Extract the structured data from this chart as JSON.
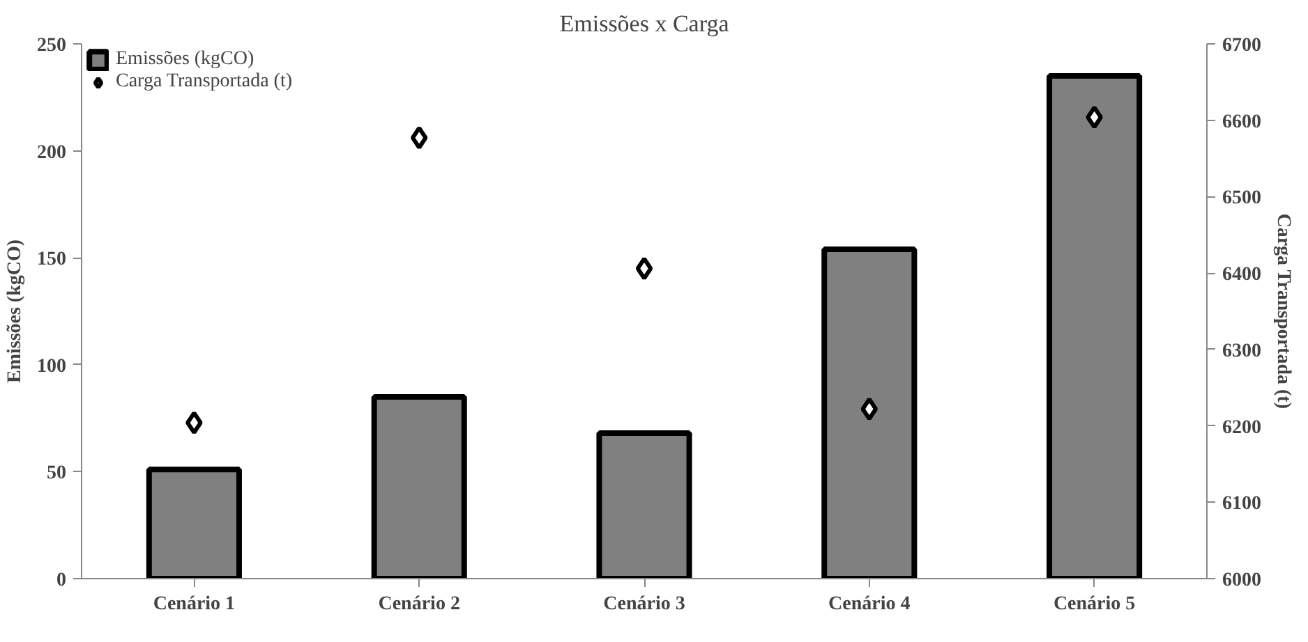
{
  "chart_data": {
    "type": "bar",
    "title": "Emissões x Carga",
    "ylabel": "Emissões (kgCO)",
    "y2label": "Carga Transportada (t)",
    "categories": [
      "Cenário 1",
      "Cenário 2",
      "Cenário 3",
      "Cenário 4",
      "Cenário 5"
    ],
    "series": [
      {
        "name": "Emissões (kgCO)",
        "type": "bar",
        "color": "#808080",
        "values": [
          51,
          85,
          68,
          154,
          235
        ]
      },
      {
        "name": "Carga Transportada (t)",
        "type": "scatter",
        "axis": "y2",
        "color": "#000000",
        "marker": "diamond",
        "values": [
          6204,
          6577,
          6406,
          6222,
          6604
        ]
      }
    ],
    "ylim": [
      0,
      250
    ],
    "yticks": [
      0,
      50,
      100,
      150,
      200,
      250
    ],
    "y2lim": [
      6000,
      6700
    ],
    "y2ticks": [
      6000,
      6100,
      6200,
      6300,
      6400,
      6500,
      6600,
      6700
    ],
    "legend": "top left"
  }
}
